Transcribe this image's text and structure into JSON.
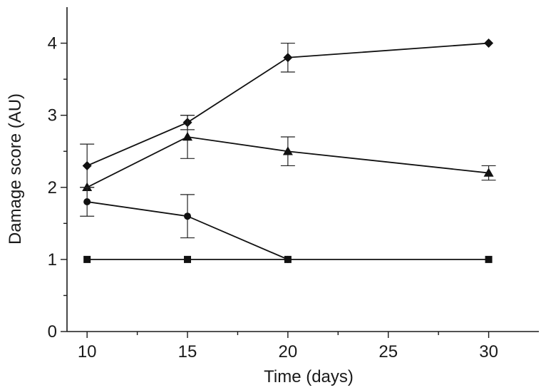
{
  "chart_data": {
    "type": "line",
    "xlabel": "Time (days)",
    "ylabel": "Damage score (AU)",
    "xlim": [
      9,
      32.5
    ],
    "ylim": [
      0,
      4.5
    ],
    "x_ticks": [
      10,
      15,
      20,
      25,
      30
    ],
    "y_ticks": [
      0,
      1,
      2,
      3,
      4
    ],
    "grid": false,
    "legend": "none",
    "series": [
      {
        "marker": "diamond",
        "color": "#111111",
        "points": [
          {
            "x": 10,
            "y": 2.3,
            "err": 0.3
          },
          {
            "x": 15,
            "y": 2.9,
            "err": 0.1
          },
          {
            "x": 20,
            "y": 3.8,
            "err": 0.2
          },
          {
            "x": 30,
            "y": 4.0,
            "err": 0
          }
        ]
      },
      {
        "marker": "triangle",
        "color": "#111111",
        "points": [
          {
            "x": 10,
            "y": 2.0,
            "err": 0
          },
          {
            "x": 15,
            "y": 2.7,
            "err": 0.3
          },
          {
            "x": 20,
            "y": 2.5,
            "err": 0.2
          },
          {
            "x": 30,
            "y": 2.2,
            "err": 0.1
          }
        ]
      },
      {
        "marker": "circle",
        "color": "#111111",
        "points": [
          {
            "x": 10,
            "y": 1.8,
            "err": 0.2
          },
          {
            "x": 15,
            "y": 1.6,
            "err": 0.3
          },
          {
            "x": 20,
            "y": 1.0,
            "err": 0
          }
        ]
      },
      {
        "marker": "square",
        "color": "#111111",
        "points": [
          {
            "x": 10,
            "y": 1.0,
            "err": 0
          },
          {
            "x": 15,
            "y": 1.0,
            "err": 0
          },
          {
            "x": 20,
            "y": 1.0,
            "err": 0
          },
          {
            "x": 30,
            "y": 1.0,
            "err": 0
          }
        ]
      }
    ]
  }
}
